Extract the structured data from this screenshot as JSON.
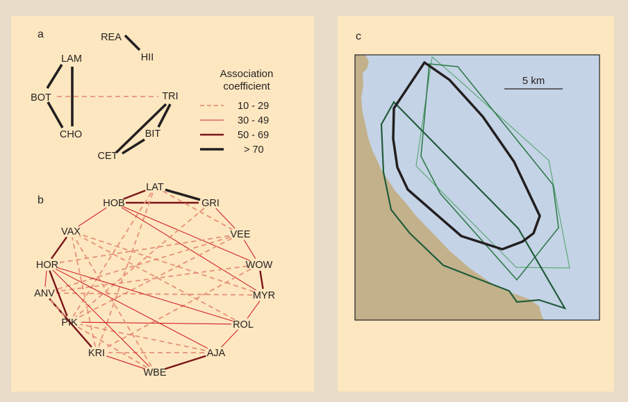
{
  "panel_a": {
    "label": "a",
    "nodes": [
      "REA",
      "HII",
      "LAM",
      "BOT",
      "CHO",
      "TRI",
      "BIT",
      "CET"
    ],
    "edges": [
      {
        "from": "REA",
        "to": "HII",
        "level": "gt70"
      },
      {
        "from": "LAM",
        "to": "BOT",
        "level": "gt70"
      },
      {
        "from": "LAM",
        "to": "CHO",
        "level": "gt70"
      },
      {
        "from": "BOT",
        "to": "CHO",
        "level": "gt70"
      },
      {
        "from": "BOT",
        "to": "TRI",
        "level": "10-29"
      },
      {
        "from": "TRI",
        "to": "CET",
        "level": "gt70"
      },
      {
        "from": "TRI",
        "to": "BIT",
        "level": "gt70"
      },
      {
        "from": "BIT",
        "to": "CET",
        "level": "gt70"
      }
    ]
  },
  "legend": {
    "title_line1": "Association",
    "title_line2": "coefficient",
    "items": [
      {
        "label": "10 - 29",
        "key": "10-29"
      },
      {
        "label": "30 - 49",
        "key": "30-49"
      },
      {
        "label": "50 - 69",
        "key": "50-69"
      },
      {
        "label": "> 70",
        "key": "gt70"
      }
    ]
  },
  "panel_b": {
    "label": "b",
    "nodes": [
      "LAT",
      "HOB",
      "GRI",
      "VAX",
      "VEE",
      "HOR",
      "WOW",
      "ANV",
      "MYR",
      "PIK",
      "ROL",
      "KRI",
      "AJA",
      "WBE"
    ],
    "edges": [
      {
        "from": "LAT",
        "to": "GRI",
        "level": "gt70"
      },
      {
        "from": "HOB",
        "to": "LAT",
        "level": "50-69"
      },
      {
        "from": "HOB",
        "to": "GRI",
        "level": "50-69"
      },
      {
        "from": "LAT",
        "to": "PIK",
        "level": "10-29"
      },
      {
        "from": "LAT",
        "to": "KRI",
        "level": "10-29"
      },
      {
        "from": "LAT",
        "to": "VEE",
        "level": "10-29"
      },
      {
        "from": "HOB",
        "to": "WOW",
        "level": "30-49"
      },
      {
        "from": "HOB",
        "to": "MYR",
        "level": "30-49"
      },
      {
        "from": "GRI",
        "to": "VEE",
        "level": "30-49"
      },
      {
        "from": "GRI",
        "to": "PIK",
        "level": "10-29"
      },
      {
        "from": "VEE",
        "to": "WOW",
        "level": "30-49"
      },
      {
        "from": "VEE",
        "to": "HOR",
        "level": "10-29"
      },
      {
        "from": "VEE",
        "to": "ANV",
        "level": "10-29"
      },
      {
        "from": "VEE",
        "to": "PIK",
        "level": "10-29"
      },
      {
        "from": "WOW",
        "to": "MYR",
        "level": "50-69"
      },
      {
        "from": "WOW",
        "to": "ANV",
        "level": "10-29"
      },
      {
        "from": "WOW",
        "to": "KRI",
        "level": "10-29"
      },
      {
        "from": "MYR",
        "to": "ANV",
        "level": "10-29"
      },
      {
        "from": "MYR",
        "to": "ROL",
        "level": "30-49"
      },
      {
        "from": "MYR",
        "to": "VAX",
        "level": "10-29"
      },
      {
        "from": "ROL",
        "to": "AJA",
        "level": "30-49"
      },
      {
        "from": "ROL",
        "to": "HOR",
        "level": "30-49"
      },
      {
        "from": "ROL",
        "to": "VAX",
        "level": "10-29"
      },
      {
        "from": "ROL",
        "to": "PIK",
        "level": "30-49"
      },
      {
        "from": "AJA",
        "to": "WBE",
        "level": "50-69"
      },
      {
        "from": "AJA",
        "to": "HOR",
        "level": "30-49"
      },
      {
        "from": "AJA",
        "to": "KRI",
        "level": "10-29"
      },
      {
        "from": "AJA",
        "to": "PIK",
        "level": "10-29"
      },
      {
        "from": "WBE",
        "to": "KRI",
        "level": "30-49"
      },
      {
        "from": "WBE",
        "to": "PIK",
        "level": "10-29"
      },
      {
        "from": "WBE",
        "to": "VAX",
        "level": "10-29"
      },
      {
        "from": "WBE",
        "to": "HOR",
        "level": "30-49"
      },
      {
        "from": "KRI",
        "to": "ANV",
        "level": "50-69"
      },
      {
        "from": "KRI",
        "to": "VAX",
        "level": "10-29"
      },
      {
        "from": "PIK",
        "to": "ANV",
        "level": "10-29"
      },
      {
        "from": "PIK",
        "to": "HOR",
        "level": "50-69"
      },
      {
        "from": "ANV",
        "to": "HOR",
        "level": "30-49"
      },
      {
        "from": "HOR",
        "to": "VAX",
        "level": "50-69"
      },
      {
        "from": "VAX",
        "to": "HOB",
        "level": "30-49"
      }
    ]
  },
  "panel_c": {
    "label": "c",
    "scale_label": "5 km",
    "colors": {
      "sea": "#c5d3e6",
      "land": "#c2b18b",
      "black_range": "#231f20",
      "dark_green_range": "#1f5c3a",
      "mid_green_range": "#2f7a4a",
      "light_green_range": "#5ea87a"
    }
  },
  "colors": {
    "level_10_29": "#e58f7a",
    "level_30_49": "#d0202b",
    "level_50_69": "#7a1418",
    "level_gt70": "#231f20",
    "panel_bg": "#fde7c0",
    "page_bg": "#e8dcc9"
  }
}
